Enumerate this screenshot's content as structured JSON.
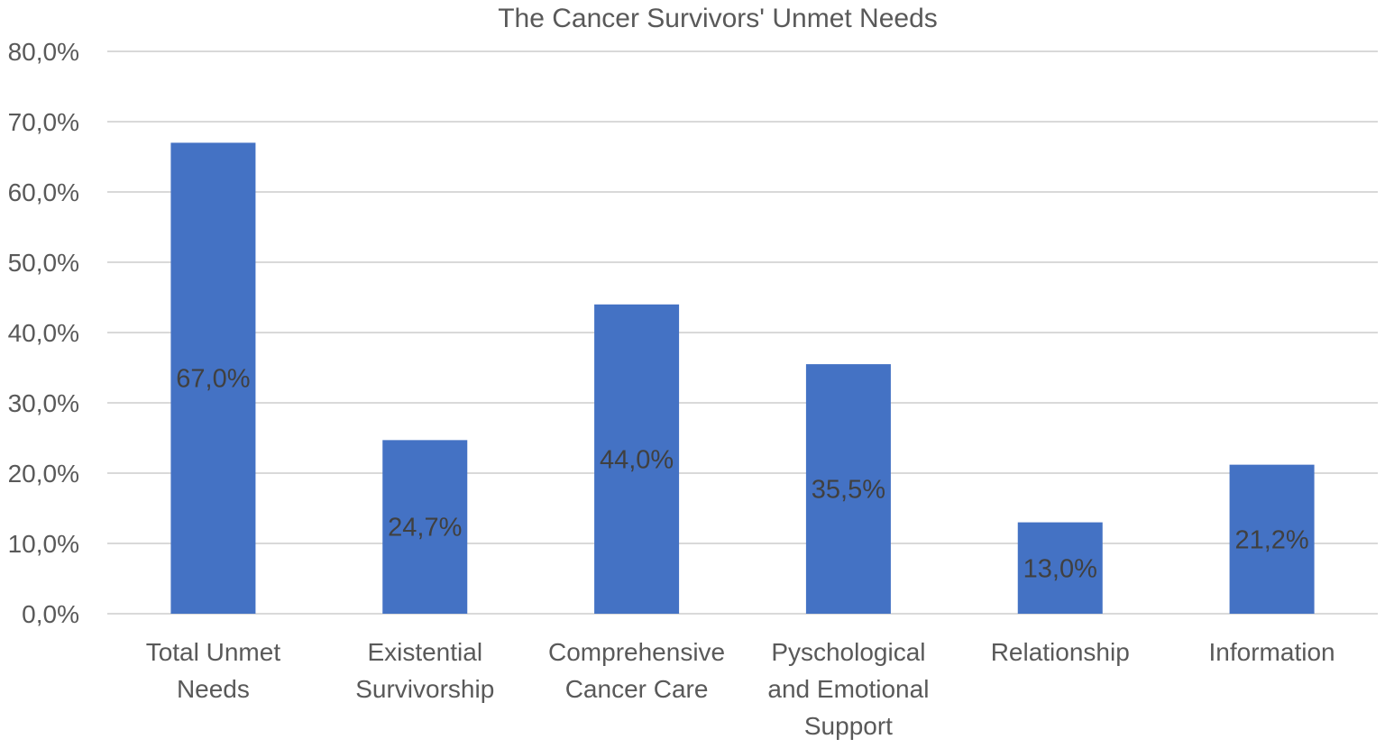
{
  "chart_data": {
    "type": "bar",
    "title": "The Cancer Survivors' Unmet Needs",
    "xlabel": "",
    "ylabel": "",
    "categories": [
      [
        "Total Unmet",
        "Needs"
      ],
      [
        "Existential",
        "Survivorship"
      ],
      [
        "Comprehensive",
        "Cancer Care"
      ],
      [
        "Pyschological",
        "and Emotional",
        "Support"
      ],
      [
        "Relationship"
      ],
      [
        "Information"
      ]
    ],
    "values": [
      67.0,
      24.7,
      44.0,
      35.5,
      13.0,
      21.2
    ],
    "data_labels": [
      "67,0%",
      "24,7%",
      "44,0%",
      "35,5%",
      "13,0%",
      "21,2%"
    ],
    "ylim": [
      0,
      80
    ],
    "yticks": [
      0,
      10,
      20,
      30,
      40,
      50,
      60,
      70,
      80
    ],
    "ytick_labels": [
      "0,0%",
      "10,0%",
      "20,0%",
      "30,0%",
      "40,0%",
      "50,0%",
      "60,0%",
      "70,0%",
      "80,0%"
    ],
    "grid": true,
    "legend": "none",
    "bar_color": "#4472c4",
    "grid_color": "#d9d9d9"
  }
}
